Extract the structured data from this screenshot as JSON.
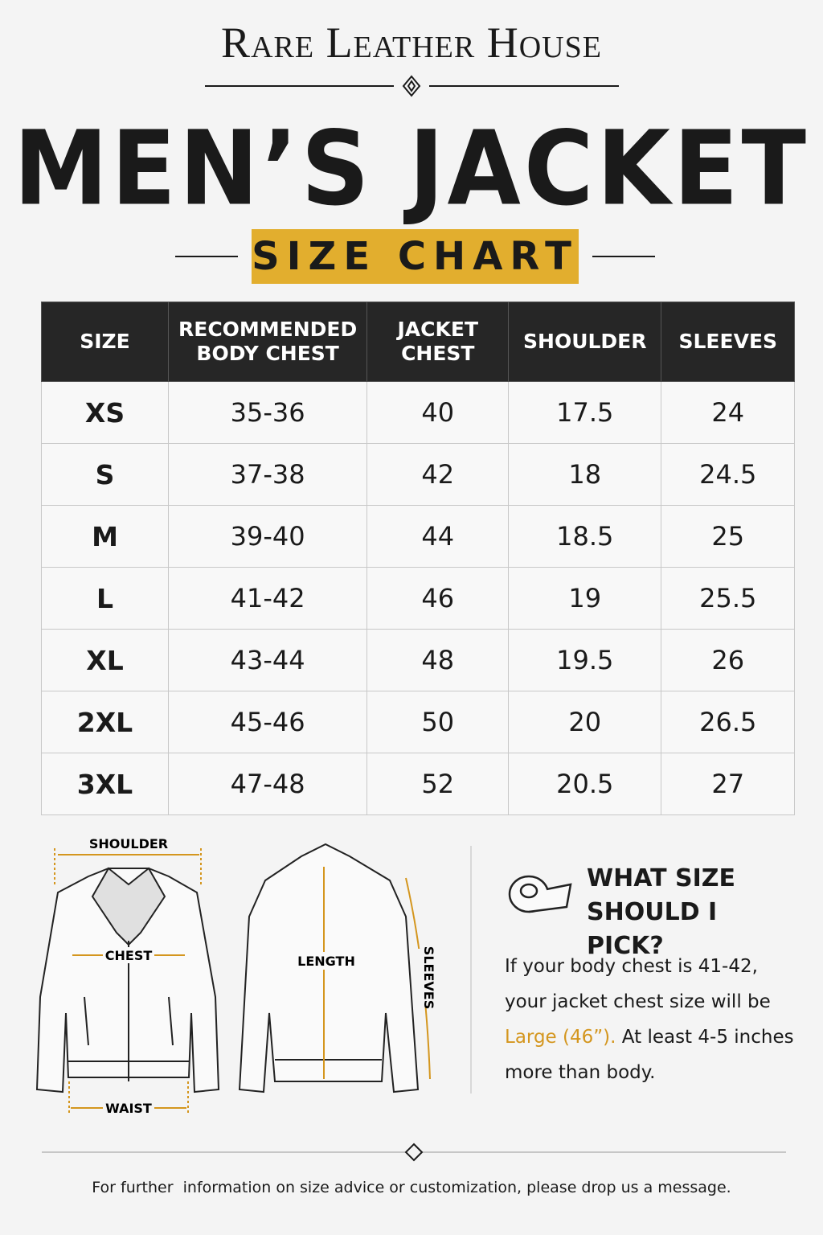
{
  "header": {
    "brand": "Rare Leather House",
    "title": "MEN’S JACKET",
    "subtitle": "SIZE CHART"
  },
  "table": {
    "columns": [
      "SIZE",
      "RECOMMENDED BODY CHEST",
      "JACKET CHEST",
      "SHOULDER",
      "SLEEVES"
    ],
    "rows": [
      [
        "XS",
        "35-36",
        40,
        17.5,
        24
      ],
      [
        "S",
        "37-38",
        42,
        18,
        24.5
      ],
      [
        "M",
        "39-40",
        44,
        18.5,
        25
      ],
      [
        "L",
        "41-42",
        46,
        19,
        25.5
      ],
      [
        "XL",
        "43-44",
        48,
        19.5,
        26
      ],
      [
        "2XL",
        "45-46",
        50,
        20,
        26.5
      ],
      [
        "3XL",
        "47-48",
        52,
        20.5,
        27
      ]
    ]
  },
  "diagram": {
    "shoulder": "SHOULDER",
    "chest": "CHEST",
    "waist": "WAIST",
    "length": "LENGTH",
    "sleeves": "SLEEVES"
  },
  "advice": {
    "title": "WHAT SIZE SHOULD I PICK?",
    "text_start": "If your body chest is 41-42, your jacket chest size will be",
    "highlight": "Large (46”).",
    "text_end": "At least 4-5 inches more than body."
  },
  "footer": "For further  information on size advice or customization, please drop us a message."
}
